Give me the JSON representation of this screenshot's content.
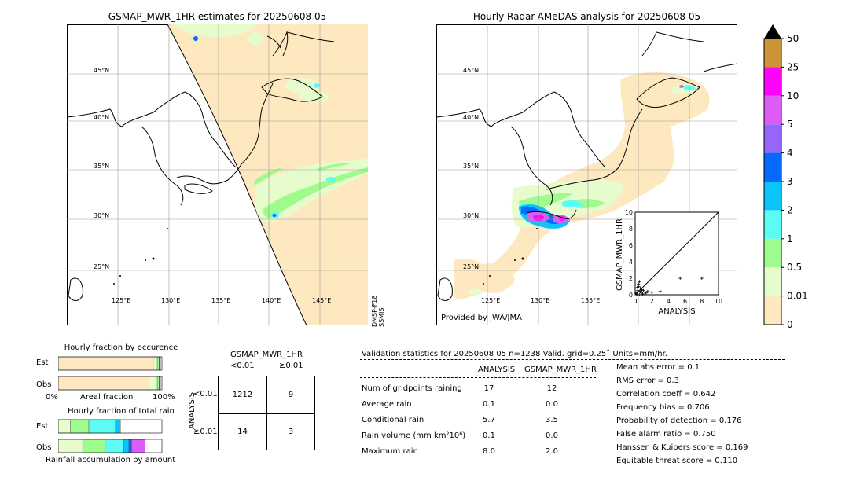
{
  "left_map": {
    "title": "GSMAP_MWR_1HR estimates for 20250608 05",
    "lat_labels": [
      "45°N",
      "40°N",
      "35°N",
      "30°N",
      "25°N"
    ],
    "lon_labels": [
      "125°E",
      "130°E",
      "135°E",
      "140°E",
      "145°E"
    ],
    "side_label_1": "DMSP-F18",
    "side_label_2": "SSMIS"
  },
  "right_map": {
    "title": "Hourly Radar-AMeDAS analysis for 20250608 05",
    "lat_labels": [
      "45°N",
      "40°N",
      "35°N",
      "30°N",
      "25°N"
    ],
    "lon_labels": [
      "125°E",
      "130°E",
      "135°E"
    ],
    "credit": "Provided by JWA/JMA"
  },
  "colorbar": {
    "levels": [
      "0",
      "0.01",
      "0.5",
      "1",
      "2",
      "3",
      "4",
      "5",
      "10",
      "25",
      "50"
    ],
    "colors": [
      "#fde8c0",
      "#e6fccc",
      "#9efc8c",
      "#5cfcf4",
      "#0cc4fc",
      "#0469fc",
      "#9466fc",
      "#dd5cf8",
      "#fc04fc",
      "#cc9434",
      "#000000"
    ]
  },
  "chart_data": [
    {
      "type": "scatter",
      "xlabel": "ANALYSIS",
      "ylabel": "GSMAP_MWR_1HR",
      "xlim": [
        0,
        10
      ],
      "ylim": [
        0,
        10
      ],
      "xticks": [
        "0",
        "2",
        "4",
        "6",
        "8",
        "10"
      ],
      "yticks": [
        "0",
        "2",
        "4",
        "6",
        "8",
        "10"
      ],
      "points": [
        [
          0.1,
          0.2
        ],
        [
          0.2,
          0.1
        ],
        [
          0.3,
          0.5
        ],
        [
          0.4,
          1.0
        ],
        [
          0.5,
          1.6
        ],
        [
          0.6,
          0.4
        ],
        [
          0.3,
          0.9
        ],
        [
          0.7,
          0.2
        ],
        [
          0.8,
          0.6
        ],
        [
          1.0,
          0.5
        ],
        [
          1.2,
          0.3
        ],
        [
          1.5,
          0.4
        ],
        [
          2.0,
          0.3
        ],
        [
          0.2,
          0.0
        ],
        [
          0.5,
          0.0
        ],
        [
          0.9,
          0.1
        ],
        [
          1.3,
          0.2
        ],
        [
          3.0,
          0.4
        ],
        [
          5.4,
          2.0
        ],
        [
          8.0,
          2.0
        ],
        [
          0.4,
          1.3
        ],
        [
          0.6,
          0.8
        ]
      ]
    },
    {
      "type": "bar",
      "title": "Hourly fraction by occurence",
      "categories": [
        "Est",
        "Obs"
      ],
      "xlabels": [
        "0%",
        "Areal fraction",
        "100%"
      ],
      "series": [
        {
          "color": "#fde8c0",
          "values": [
            0.93,
            0.89
          ]
        },
        {
          "color": "#e6fccc",
          "values": [
            0.04,
            0.08
          ]
        },
        {
          "color": "#9efc8c",
          "values": [
            0.02,
            0.02
          ]
        },
        {
          "color": "#000000",
          "values": [
            0.01,
            0.01
          ]
        }
      ]
    },
    {
      "type": "bar",
      "title": "Hourly fraction of total rain",
      "categories": [
        "Est",
        "Obs"
      ],
      "xlabel": "Rainfall accumulation by amount",
      "series": [
        {
          "color": "#e6fccc",
          "values": [
            0.12,
            0.24
          ]
        },
        {
          "color": "#9efc8c",
          "values": [
            0.18,
            0.22
          ]
        },
        {
          "color": "#5cfcf4",
          "values": [
            0.26,
            0.18
          ]
        },
        {
          "color": "#0cc4fc",
          "values": [
            0.05,
            0.05
          ]
        },
        {
          "color": "#0469fc",
          "values": [
            0.0,
            0.03
          ]
        },
        {
          "color": "#dd5cf8",
          "values": [
            0.0,
            0.13
          ]
        }
      ]
    }
  ],
  "contingency": {
    "title": "GSMAP_MWR_1HR",
    "col_headers": [
      "<0.01",
      "≥0.01"
    ],
    "row_headers": [
      "<0.01",
      "≥0.01"
    ],
    "side_label": "ANALYSIS",
    "cells": [
      "1212",
      "9",
      "14",
      "3"
    ]
  },
  "validation": {
    "header": "Validation statistics for 20250608 05  n=1238 Valid. grid=0.25˚ Units=mm/hr.",
    "col_analysis": "ANALYSIS",
    "col_gsmap": "GSMAP_MWR_1HR",
    "rows": [
      {
        "label": "Num of gridpoints raining",
        "analysis": "17",
        "gsmap": "12"
      },
      {
        "label": "Average rain",
        "analysis": "0.1",
        "gsmap": "0.0"
      },
      {
        "label": "Conditional rain",
        "analysis": "5.7",
        "gsmap": "3.5"
      },
      {
        "label": "Rain volume (mm km²10⁶)",
        "analysis": "0.1",
        "gsmap": "0.0"
      },
      {
        "label": "Maximum rain",
        "analysis": "8.0",
        "gsmap": "2.0"
      }
    ],
    "scores": [
      "Mean abs error =    0.1",
      "RMS error =    0.3",
      "Correlation coeff =  0.642",
      "Frequency bias =  0.706",
      "Probability of detection =  0.176",
      "False alarm ratio =  0.750",
      "Hanssen & Kuipers score =  0.169",
      "Equitable threat score =  0.110"
    ]
  }
}
